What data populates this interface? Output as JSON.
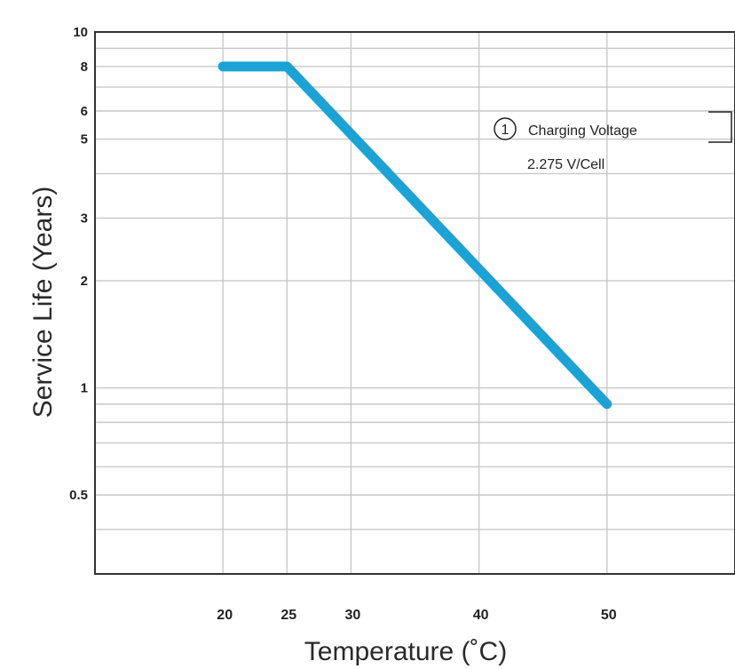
{
  "chart_data": {
    "type": "line",
    "title": "",
    "xlabel": "Temperature (˚C)",
    "ylabel": "Service Life (Years)",
    "x_ticks": [
      20,
      25,
      30,
      40,
      50
    ],
    "y_ticks": [
      0.5,
      1,
      2,
      3,
      5,
      6,
      8,
      10
    ],
    "y_tick_labels": [
      "0.5",
      "1",
      "2",
      "3",
      "5",
      "6",
      "8",
      "10"
    ],
    "y_scale": "log",
    "xlim": [
      10,
      60
    ],
    "ylim": [
      0.3,
      10
    ],
    "grid": true,
    "series": [
      {
        "x": [
          20,
          25,
          50
        ],
        "y": [
          8,
          8,
          0.9
        ],
        "color": "#1aa3d4"
      }
    ],
    "annotation": {
      "number": "1",
      "line1": "Charging Voltage",
      "line2": "2.275 V/Cell"
    }
  }
}
